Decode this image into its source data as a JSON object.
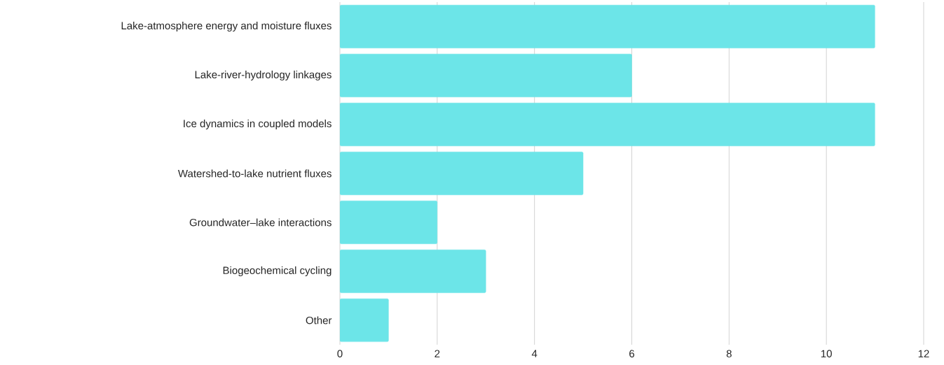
{
  "chart_data": {
    "type": "bar",
    "orientation": "horizontal",
    "categories": [
      "Lake-atmosphere energy and moisture fluxes",
      "Lake-river-hydrology linkages",
      "Ice dynamics in coupled models",
      "Watershed-to-lake nutrient fluxes",
      "Groundwater–lake interactions",
      "Biogeochemical cycling",
      "Other"
    ],
    "values": [
      11,
      6,
      11,
      5,
      2,
      3,
      1
    ],
    "color": "#6ce5e8",
    "xlim": [
      0,
      12
    ],
    "xticks": [
      0,
      2,
      4,
      6,
      8,
      10,
      12
    ],
    "grid": "x"
  }
}
